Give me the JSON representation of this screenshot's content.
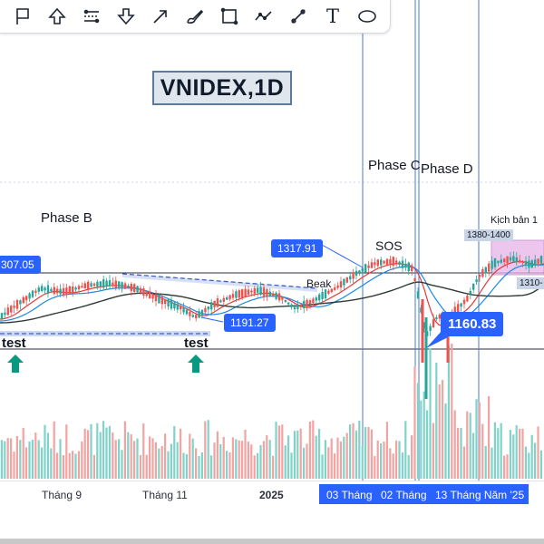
{
  "toolbar": {
    "tools": [
      {
        "icon": "flag-icon",
        "name": "tool-flag"
      },
      {
        "icon": "arrow-up-icon",
        "name": "tool-arrow-up"
      },
      {
        "icon": "parallel-channel-icon",
        "name": "tool-channel"
      },
      {
        "icon": "arrow-down-icon",
        "name": "tool-arrow-down"
      },
      {
        "icon": "arrow-icon",
        "name": "tool-arrow"
      },
      {
        "icon": "brush-icon",
        "name": "tool-brush"
      },
      {
        "icon": "rectangle-icon",
        "name": "tool-rectangle"
      },
      {
        "icon": "path-icon",
        "name": "tool-path"
      },
      {
        "icon": "trend-line-icon",
        "name": "tool-trend-line"
      },
      {
        "icon": "text-icon",
        "name": "tool-text"
      },
      {
        "icon": "ellipse-icon",
        "name": "tool-ellipse"
      }
    ],
    "text_glyph": "T"
  },
  "title": "VNIDEX,1D",
  "annotations": {
    "phase_b": "Phase B",
    "phase_c": "Phase C",
    "phase_d": "Phase D",
    "sos": "SOS",
    "beak": "Beak",
    "kich_ban": "Kịch bản 1",
    "test_left": "test",
    "test_mid": "test"
  },
  "price_tags": {
    "p1307": "307.05",
    "p1317": "1317.91",
    "p1191": "1191.27",
    "p1160": "1160.83",
    "zone_1380": "1380-1400",
    "zone_1310": "1310-"
  },
  "time_axis": {
    "labels": [
      "Tháng 9",
      "Tháng 11",
      "2025"
    ],
    "highlighted": [
      "03 Tháng",
      "02 Tháng",
      "13 Tháng Năm '25"
    ]
  },
  "colors": {
    "accent": "#2962ff",
    "up": "#26a69a",
    "down": "#ef5350",
    "ma_red": "#e53935",
    "ma_blue": "#1e88e5",
    "ma_dark": "#2e3b35",
    "zone": "#e6b3e6"
  }
}
